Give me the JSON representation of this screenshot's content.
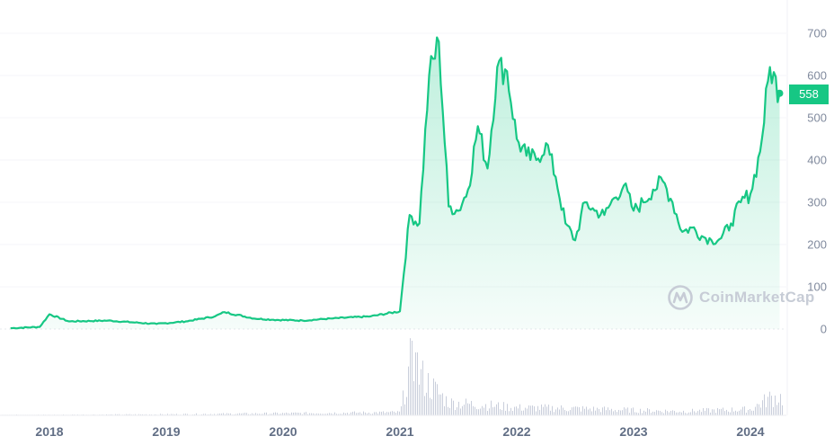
{
  "chart_data": {
    "type": "area",
    "title": "",
    "xlabel": "",
    "ylabel": "",
    "ylim": [
      0,
      700
    ],
    "grid": true,
    "legend": "none",
    "y_ticks": [
      "700",
      "600",
      "500",
      "400",
      "300",
      "200",
      "100",
      "0"
    ],
    "x_ticks": [
      "2018",
      "2019",
      "2020",
      "2021",
      "2022",
      "2023",
      "2024"
    ],
    "current_price": "558",
    "series": [
      {
        "name": "Price",
        "color": "#16c784",
        "x": [
          "2017-09",
          "2017-12",
          "2018-01",
          "2018-03",
          "2018-07",
          "2018-12",
          "2019-03",
          "2019-06",
          "2019-07",
          "2019-10",
          "2019-12",
          "2020-03",
          "2020-06",
          "2020-10",
          "2021-01",
          "2021-02",
          "2021-03",
          "2021-04",
          "2021-05",
          "2021-06",
          "2021-07",
          "2021-08",
          "2021-09",
          "2021-10",
          "2021-11",
          "2021-12",
          "2022-01",
          "2022-02",
          "2022-03",
          "2022-04",
          "2022-05",
          "2022-06",
          "2022-07",
          "2022-08",
          "2022-09",
          "2022-10",
          "2022-11",
          "2022-12",
          "2023-01",
          "2023-02",
          "2023-03",
          "2023-04",
          "2023-05",
          "2023-06",
          "2023-07",
          "2023-08",
          "2023-09",
          "2023-10",
          "2023-11",
          "2023-12",
          "2024-01",
          "2024-02",
          "2024-03",
          "2024-04"
        ],
        "values": [
          2,
          5,
          35,
          18,
          20,
          12,
          18,
          30,
          40,
          25,
          22,
          20,
          25,
          30,
          42,
          270,
          250,
          600,
          680,
          290,
          280,
          330,
          480,
          380,
          620,
          610,
          450,
          410,
          400,
          440,
          360,
          250,
          210,
          300,
          280,
          270,
          310,
          340,
          280,
          300,
          330,
          350,
          300,
          230,
          240,
          220,
          210,
          215,
          250,
          300,
          320,
          420,
          620,
          558
        ]
      },
      {
        "name": "Volume",
        "color": "#c9cedb",
        "relative": true,
        "x": [
          "2018",
          "2019",
          "2020",
          "2021-01",
          "2021-02",
          "2021-04",
          "2021-06",
          "2021-10",
          "2022",
          "2022-06",
          "2023",
          "2023-06",
          "2024-01",
          "2024-03"
        ],
        "values": [
          1,
          2,
          4,
          6,
          100,
          60,
          25,
          20,
          15,
          14,
          10,
          8,
          12,
          35
        ]
      }
    ]
  },
  "axis": {
    "y_labels": [
      "700",
      "600",
      "500",
      "400",
      "300",
      "200",
      "100",
      "0"
    ],
    "x_labels": [
      "2018",
      "2019",
      "2020",
      "2021",
      "2022",
      "2023",
      "2024"
    ]
  },
  "badge": {
    "price": "558"
  },
  "watermark": {
    "text": "CoinMarketCap"
  }
}
